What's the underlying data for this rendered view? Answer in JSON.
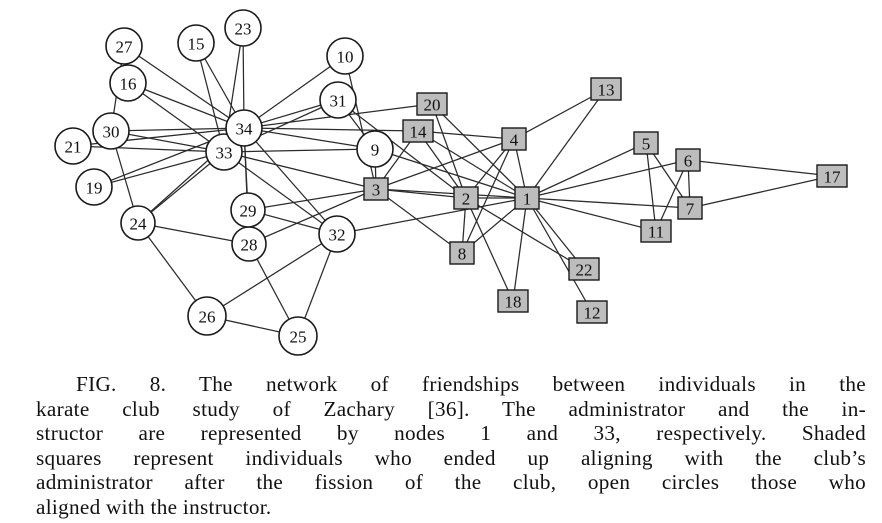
{
  "figure": {
    "nodes": [
      {
        "id": "1",
        "shape": "square",
        "group": "administrator"
      },
      {
        "id": "2",
        "shape": "square",
        "group": "administrator"
      },
      {
        "id": "3",
        "shape": "square",
        "group": "administrator"
      },
      {
        "id": "4",
        "shape": "square",
        "group": "administrator"
      },
      {
        "id": "5",
        "shape": "square",
        "group": "administrator"
      },
      {
        "id": "6",
        "shape": "square",
        "group": "administrator"
      },
      {
        "id": "7",
        "shape": "square",
        "group": "administrator"
      },
      {
        "id": "8",
        "shape": "square",
        "group": "administrator"
      },
      {
        "id": "9",
        "shape": "circle",
        "group": "instructor"
      },
      {
        "id": "10",
        "shape": "circle",
        "group": "instructor"
      },
      {
        "id": "11",
        "shape": "square",
        "group": "administrator"
      },
      {
        "id": "12",
        "shape": "square",
        "group": "administrator"
      },
      {
        "id": "13",
        "shape": "square",
        "group": "administrator"
      },
      {
        "id": "14",
        "shape": "square",
        "group": "administrator"
      },
      {
        "id": "15",
        "shape": "circle",
        "group": "instructor"
      },
      {
        "id": "16",
        "shape": "circle",
        "group": "instructor"
      },
      {
        "id": "17",
        "shape": "square",
        "group": "administrator"
      },
      {
        "id": "18",
        "shape": "square",
        "group": "administrator"
      },
      {
        "id": "19",
        "shape": "circle",
        "group": "instructor"
      },
      {
        "id": "20",
        "shape": "square",
        "group": "administrator"
      },
      {
        "id": "21",
        "shape": "circle",
        "group": "instructor"
      },
      {
        "id": "22",
        "shape": "square",
        "group": "administrator"
      },
      {
        "id": "23",
        "shape": "circle",
        "group": "instructor"
      },
      {
        "id": "24",
        "shape": "circle",
        "group": "instructor"
      },
      {
        "id": "25",
        "shape": "circle",
        "group": "instructor"
      },
      {
        "id": "26",
        "shape": "circle",
        "group": "instructor"
      },
      {
        "id": "27",
        "shape": "circle",
        "group": "instructor"
      },
      {
        "id": "28",
        "shape": "circle",
        "group": "instructor"
      },
      {
        "id": "29",
        "shape": "circle",
        "group": "instructor"
      },
      {
        "id": "30",
        "shape": "circle",
        "group": "instructor"
      },
      {
        "id": "31",
        "shape": "circle",
        "group": "instructor"
      },
      {
        "id": "32",
        "shape": "circle",
        "group": "instructor"
      },
      {
        "id": "33",
        "shape": "circle",
        "group": "instructor"
      },
      {
        "id": "34",
        "shape": "circle",
        "group": "instructor"
      }
    ],
    "edges": [
      [
        "1",
        "2"
      ],
      [
        "1",
        "3"
      ],
      [
        "1",
        "4"
      ],
      [
        "1",
        "5"
      ],
      [
        "1",
        "6"
      ],
      [
        "1",
        "7"
      ],
      [
        "1",
        "8"
      ],
      [
        "1",
        "9"
      ],
      [
        "1",
        "11"
      ],
      [
        "1",
        "12"
      ],
      [
        "1",
        "13"
      ],
      [
        "1",
        "14"
      ],
      [
        "1",
        "18"
      ],
      [
        "1",
        "20"
      ],
      [
        "1",
        "22"
      ],
      [
        "1",
        "32"
      ],
      [
        "2",
        "3"
      ],
      [
        "2",
        "4"
      ],
      [
        "2",
        "8"
      ],
      [
        "2",
        "14"
      ],
      [
        "2",
        "18"
      ],
      [
        "2",
        "20"
      ],
      [
        "2",
        "22"
      ],
      [
        "2",
        "31"
      ],
      [
        "3",
        "4"
      ],
      [
        "3",
        "8"
      ],
      [
        "3",
        "9"
      ],
      [
        "3",
        "10"
      ],
      [
        "3",
        "14"
      ],
      [
        "3",
        "28"
      ],
      [
        "3",
        "29"
      ],
      [
        "3",
        "33"
      ],
      [
        "4",
        "8"
      ],
      [
        "4",
        "13"
      ],
      [
        "4",
        "14"
      ],
      [
        "5",
        "7"
      ],
      [
        "5",
        "11"
      ],
      [
        "6",
        "7"
      ],
      [
        "6",
        "11"
      ],
      [
        "6",
        "17"
      ],
      [
        "7",
        "17"
      ],
      [
        "9",
        "31"
      ],
      [
        "9",
        "33"
      ],
      [
        "9",
        "34"
      ],
      [
        "10",
        "34"
      ],
      [
        "14",
        "34"
      ],
      [
        "15",
        "33"
      ],
      [
        "15",
        "34"
      ],
      [
        "16",
        "33"
      ],
      [
        "16",
        "34"
      ],
      [
        "19",
        "33"
      ],
      [
        "19",
        "34"
      ],
      [
        "20",
        "34"
      ],
      [
        "21",
        "33"
      ],
      [
        "21",
        "34"
      ],
      [
        "23",
        "33"
      ],
      [
        "23",
        "34"
      ],
      [
        "24",
        "26"
      ],
      [
        "24",
        "28"
      ],
      [
        "24",
        "30"
      ],
      [
        "24",
        "33"
      ],
      [
        "24",
        "34"
      ],
      [
        "25",
        "26"
      ],
      [
        "25",
        "28"
      ],
      [
        "25",
        "32"
      ],
      [
        "26",
        "32"
      ],
      [
        "27",
        "30"
      ],
      [
        "27",
        "34"
      ],
      [
        "28",
        "34"
      ],
      [
        "29",
        "32"
      ],
      [
        "29",
        "34"
      ],
      [
        "30",
        "33"
      ],
      [
        "30",
        "34"
      ],
      [
        "31",
        "33"
      ],
      [
        "31",
        "34"
      ],
      [
        "32",
        "33"
      ],
      [
        "32",
        "34"
      ],
      [
        "33",
        "34"
      ]
    ]
  },
  "caption": {
    "lines": [
      "FIG. 8. The network of friendships between individuals in the",
      "karate club study of Zachary [36]. The administrator and the in-",
      "structor are represented by nodes 1 and 33, respectively. Shaded",
      "squares represent individuals who ended up aligning with the club’s",
      "administrator after the fission of the club, open circles those who",
      "aligned with the instructor."
    ]
  }
}
